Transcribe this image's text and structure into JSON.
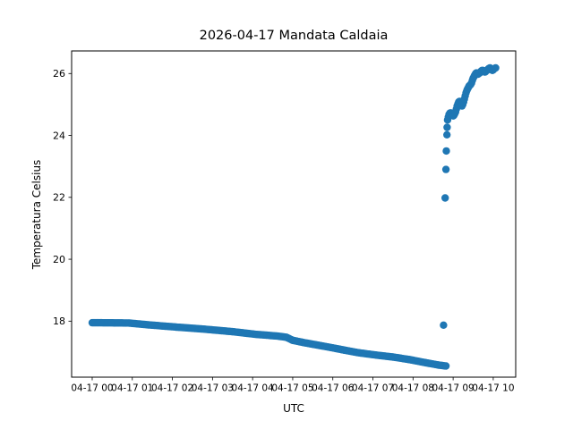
{
  "chart_data": {
    "type": "scatter",
    "title": "2026-04-17 Mandata Caldaia",
    "xlabel": "UTC",
    "ylabel": "Temperatura Celsius",
    "legend": null,
    "grid": false,
    "marker_color": "#1f77b4",
    "marker_radius_px": 4.2,
    "axis_color": "#000000",
    "x_tick_labels": [
      "04-17 00",
      "04-17 01",
      "04-17 02",
      "04-17 03",
      "04-17 04",
      "04-17 05",
      "04-17 06",
      "04-17 07",
      "04-17 08",
      "04-17 09",
      "04-17 10"
    ],
    "x_tick_hours": [
      0,
      1,
      2,
      3,
      4,
      5,
      6,
      7,
      8,
      9,
      10
    ],
    "y_ticks": [
      18,
      20,
      22,
      24,
      26
    ],
    "xlim_hours": [
      -0.513,
      10.56
    ],
    "ylim": [
      16.19,
      26.73
    ],
    "decline_step_hours": 0.03,
    "decline_anchors": [
      [
        0.0,
        17.95
      ],
      [
        0.9,
        17.94
      ],
      [
        1.4,
        17.88
      ],
      [
        2.17,
        17.8
      ],
      [
        2.8,
        17.74
      ],
      [
        3.5,
        17.66
      ],
      [
        4.1,
        17.57
      ],
      [
        4.6,
        17.52
      ],
      [
        4.84,
        17.48
      ],
      [
        5.0,
        17.38
      ],
      [
        5.3,
        17.3
      ],
      [
        5.9,
        17.16
      ],
      [
        6.3,
        17.06
      ],
      [
        6.63,
        16.98
      ],
      [
        7.1,
        16.9
      ],
      [
        7.5,
        16.84
      ],
      [
        7.9,
        16.76
      ],
      [
        8.3,
        16.66
      ],
      [
        8.64,
        16.58
      ],
      [
        8.82,
        16.55
      ]
    ],
    "jump_points": [
      [
        8.76,
        17.87
      ],
      [
        8.8,
        21.98
      ],
      [
        8.82,
        22.9
      ],
      [
        8.83,
        23.5
      ],
      [
        8.845,
        24.02
      ],
      [
        8.85,
        24.26
      ]
    ],
    "rise_points": [
      [
        8.86,
        24.5
      ],
      [
        8.88,
        24.6
      ],
      [
        8.9,
        24.68
      ],
      [
        8.92,
        24.72
      ],
      [
        8.94,
        24.73
      ],
      [
        8.96,
        24.7
      ],
      [
        8.98,
        24.66
      ],
      [
        9.0,
        24.63
      ],
      [
        9.02,
        24.65
      ],
      [
        9.04,
        24.7
      ],
      [
        9.06,
        24.76
      ],
      [
        9.08,
        24.85
      ],
      [
        9.1,
        24.95
      ],
      [
        9.12,
        25.02
      ],
      [
        9.14,
        25.08
      ],
      [
        9.16,
        25.1
      ],
      [
        9.18,
        25.05
      ],
      [
        9.2,
        24.98
      ],
      [
        9.22,
        24.95
      ],
      [
        9.24,
        25.0
      ],
      [
        9.26,
        25.08
      ],
      [
        9.28,
        25.18
      ],
      [
        9.3,
        25.28
      ],
      [
        9.32,
        25.38
      ],
      [
        9.34,
        25.45
      ],
      [
        9.36,
        25.5
      ],
      [
        9.38,
        25.55
      ],
      [
        9.4,
        25.6
      ],
      [
        9.42,
        25.62
      ],
      [
        9.44,
        25.65
      ],
      [
        9.46,
        25.7
      ],
      [
        9.48,
        25.78
      ],
      [
        9.5,
        25.85
      ],
      [
        9.52,
        25.9
      ],
      [
        9.54,
        25.95
      ],
      [
        9.56,
        26.0
      ],
      [
        9.58,
        26.02
      ],
      [
        9.6,
        26.0
      ],
      [
        9.62,
        25.98
      ],
      [
        9.64,
        26.0
      ],
      [
        9.66,
        26.02
      ],
      [
        9.68,
        26.05
      ],
      [
        9.7,
        26.08
      ],
      [
        9.72,
        26.1
      ],
      [
        9.74,
        26.1
      ],
      [
        9.76,
        26.08
      ],
      [
        9.78,
        26.05
      ],
      [
        9.8,
        26.05
      ],
      [
        9.82,
        26.08
      ],
      [
        9.84,
        26.1
      ],
      [
        9.86,
        26.12
      ],
      [
        9.88,
        26.15
      ],
      [
        9.9,
        26.17
      ],
      [
        9.92,
        26.18
      ],
      [
        9.94,
        26.15
      ],
      [
        9.96,
        26.12
      ],
      [
        9.98,
        26.1
      ],
      [
        10.0,
        26.12
      ],
      [
        10.02,
        26.15
      ],
      [
        10.04,
        26.17
      ],
      [
        10.06,
        26.18
      ]
    ]
  }
}
